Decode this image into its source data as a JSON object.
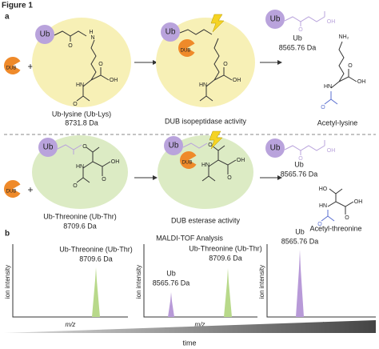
{
  "figure_label": "Figure 1",
  "panel_a": {
    "label": "a",
    "dub": "DUB",
    "plus": "+",
    "ub": "Ub",
    "atoms": [
      "O",
      "OH",
      "H",
      "N",
      "HN",
      "NH₂",
      "HO"
    ],
    "row1": {
      "substrate_name": "Ub-lysine (Ub-Lys)",
      "substrate_mass": "8731.8 Da",
      "activity": "DUB isopeptidase activity",
      "product_ub": "Ub",
      "product_mass": "8565.76 Da",
      "product_small": "Acetyl-lysine"
    },
    "row2": {
      "substrate_name": "Ub-Threonine (Ub-Thr)",
      "substrate_mass": "8709.6 Da",
      "activity": "DUB esterase activity",
      "product_ub": "Ub",
      "product_mass": "8565.76 Da",
      "product_small": "Acetyl-threonine"
    }
  },
  "panel_b": {
    "label": "b",
    "title": "MALDI-TOF Analysis",
    "y_label": "ion intensity",
    "x_label": "m/z",
    "x_arrow": "time",
    "spectra": [
      {
        "peaks": [
          {
            "name": "Ub-Threonine (Ub-Thr)",
            "mass": "8709.6 Da"
          }
        ]
      },
      {
        "peaks": [
          {
            "name": "Ub",
            "mass": "8565.76 Da"
          },
          {
            "name": "Ub-Threonine (Ub-Thr)",
            "mass": "8709.6 Da"
          }
        ]
      },
      {
        "peaks": [
          {
            "name": "Ub",
            "mass": "8565.76 Da"
          }
        ]
      }
    ]
  }
}
